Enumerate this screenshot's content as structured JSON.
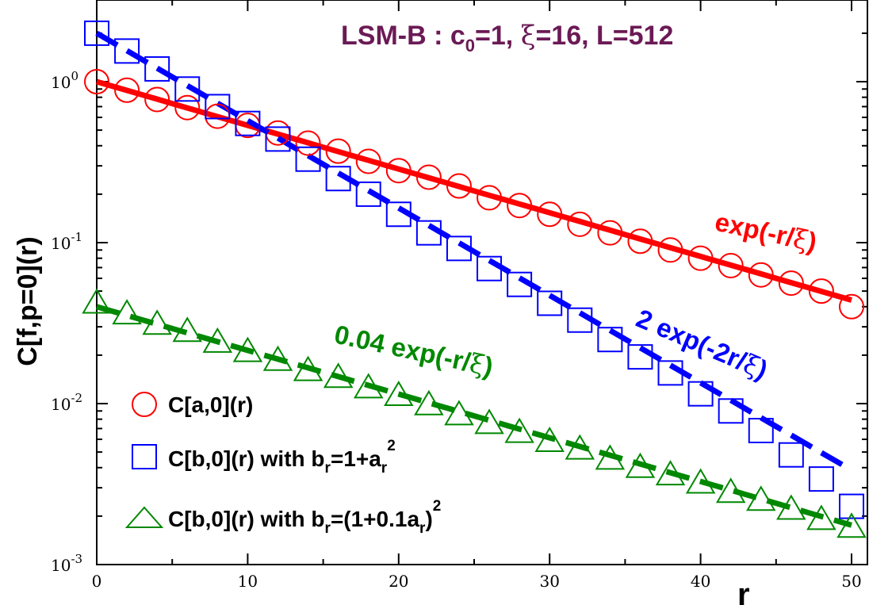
{
  "chart_data": {
    "type": "scatter",
    "title": {
      "prefix": "LSM-B :  c",
      "sub": "0",
      "mid1": "=1, ",
      "xi": "ξ",
      "rest": "=16, L=512",
      "color": "#6b1a55"
    },
    "xlabel": "r",
    "ylabel": "C[f,p=0](r)",
    "xlim": [
      0,
      50
    ],
    "ylim": [
      0.001,
      2.5
    ],
    "yscale": "log",
    "x_ticks": [
      "0",
      "10",
      "20",
      "30",
      "40",
      "50"
    ],
    "y_ticks": [
      {
        "base": "10",
        "exp": "-3"
      },
      {
        "base": "10",
        "exp": "-2"
      },
      {
        "base": "10",
        "exp": "-1"
      },
      {
        "base": "10",
        "exp": "0"
      }
    ],
    "series": [
      {
        "name": "C[a,0](r)",
        "marker": "circle",
        "color": "#ff0000",
        "x": [
          0,
          2,
          4,
          6,
          8,
          10,
          12,
          14,
          16,
          18,
          20,
          22,
          24,
          26,
          28,
          30,
          32,
          34,
          36,
          38,
          40,
          42,
          44,
          46,
          48,
          50
        ],
        "y": [
          1.0,
          0.885,
          0.775,
          0.69,
          0.61,
          0.535,
          0.48,
          0.415,
          0.37,
          0.32,
          0.28,
          0.255,
          0.225,
          0.19,
          0.17,
          0.15,
          0.13,
          0.115,
          0.102,
          0.09,
          0.08,
          0.072,
          0.063,
          0.056,
          0.05,
          0.04
        ]
      },
      {
        "name": "C[b,0](r) with b_r=1+a_r^2",
        "marker": "square",
        "color": "#0000ff",
        "x": [
          0,
          2,
          4,
          6,
          8,
          10,
          12,
          14,
          16,
          18,
          20,
          22,
          24,
          26,
          28,
          30,
          32,
          34,
          36,
          38,
          40,
          42,
          44,
          46,
          48,
          50
        ],
        "y": [
          2.0,
          1.55,
          1.2,
          0.9,
          0.7,
          0.55,
          0.44,
          0.33,
          0.25,
          0.2,
          0.15,
          0.115,
          0.092,
          0.069,
          0.055,
          0.042,
          0.033,
          0.025,
          0.0195,
          0.0155,
          0.0115,
          0.009,
          0.0068,
          0.0048,
          0.0034,
          0.0023
        ]
      },
      {
        "name": "C[b,0](r) with b_r=(1+0.1a_r)^2",
        "marker": "triangle",
        "color": "#008800",
        "x": [
          0,
          2,
          4,
          6,
          8,
          10,
          12,
          14,
          16,
          18,
          20,
          22,
          24,
          26,
          28,
          30,
          32,
          34,
          36,
          38,
          40,
          42,
          44,
          46,
          48,
          50
        ],
        "y": [
          0.042,
          0.036,
          0.031,
          0.028,
          0.024,
          0.021,
          0.0185,
          0.016,
          0.0145,
          0.0125,
          0.0112,
          0.0098,
          0.0085,
          0.0075,
          0.0066,
          0.0058,
          0.0052,
          0.0045,
          0.004,
          0.0036,
          0.0032,
          0.0028,
          0.0025,
          0.0022,
          0.0019,
          0.0017
        ]
      }
    ],
    "fits": [
      {
        "name": "exp(-r/ξ)",
        "amplitude": 1.0,
        "rate": 1,
        "style": "solid",
        "color": "#ff0000"
      },
      {
        "name": "2 exp(-2r/ξ)",
        "amplitude": 2.0,
        "rate": 2,
        "style": "dashed",
        "color": "#0000ff"
      },
      {
        "name": "0.04 exp(-r/ξ)",
        "amplitude": 0.04,
        "rate": 1,
        "style": "dashed",
        "color": "#008800"
      }
    ],
    "xi": 16,
    "annotations": {
      "red": {
        "pre": "exp(-r/",
        "sym": "ξ",
        "post": ")"
      },
      "blue": {
        "pre": "2 exp(-2r/",
        "sym": "ξ",
        "post": ")"
      },
      "green": {
        "pre": "0.04 exp(-r/",
        "sym": "ξ",
        "post": ")"
      }
    },
    "legend": {
      "position": "bottom-left",
      "entries": [
        {
          "marker": "circle",
          "color": "#ff0000",
          "label": "C[a,0](r)"
        },
        {
          "marker": "square",
          "color": "#0000ff",
          "label_pre": "C[b,0](r) with b",
          "sub1": "r",
          "mid": "=1+a",
          "sub2": "r",
          "sup": "2"
        },
        {
          "marker": "triangle",
          "color": "#008800",
          "label_pre": "C[b,0](r) with b",
          "sub1": "r",
          "mid": "=(1+0.1a",
          "sub2": "r",
          "post": ")",
          "sup": "2"
        }
      ]
    }
  }
}
